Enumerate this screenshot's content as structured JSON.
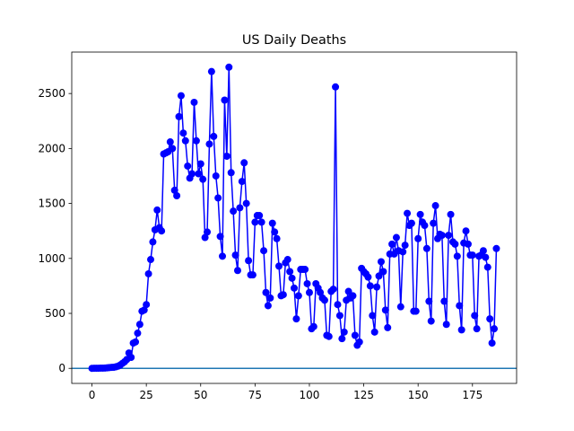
{
  "chart_data": {
    "type": "line",
    "title": "US Daily Deaths",
    "x": [
      0,
      1,
      2,
      3,
      4,
      5,
      6,
      7,
      8,
      9,
      10,
      11,
      12,
      13,
      14,
      15,
      16,
      17,
      18,
      19,
      20,
      21,
      22,
      23,
      24,
      25,
      26,
      27,
      28,
      29,
      30,
      31,
      32,
      33,
      34,
      35,
      36,
      37,
      38,
      39,
      40,
      41,
      42,
      43,
      44,
      45,
      46,
      47,
      48,
      49,
      50,
      51,
      52,
      53,
      54,
      55,
      56,
      57,
      58,
      59,
      60,
      61,
      62,
      63,
      64,
      65,
      66,
      67,
      68,
      69,
      70,
      71,
      72,
      73,
      74,
      75,
      76,
      77,
      78,
      79,
      80,
      81,
      82,
      83,
      84,
      85,
      86,
      87,
      88,
      89,
      90,
      91,
      92,
      93,
      94,
      95,
      96,
      97,
      98,
      99,
      100,
      101,
      102,
      103,
      104,
      105,
      106,
      107,
      108,
      109,
      110,
      111,
      112,
      113,
      114,
      115,
      116,
      117,
      118,
      119,
      120,
      121,
      122,
      123,
      124,
      125,
      126,
      127,
      128,
      129,
      130,
      131,
      132,
      133,
      134,
      135,
      136,
      137,
      138,
      139,
      140,
      141,
      142,
      143,
      144,
      145,
      146,
      147,
      148,
      149,
      150,
      151,
      152,
      153,
      154,
      155,
      156,
      157,
      158,
      159,
      160,
      161,
      162,
      163,
      164,
      165,
      166,
      167,
      168,
      169,
      170,
      171,
      172,
      173,
      174,
      175,
      176,
      177,
      178,
      179,
      180,
      181,
      182,
      183,
      184,
      185,
      186
    ],
    "series": [
      {
        "name": "US",
        "color": "#0000ff",
        "values": [
          0,
          1,
          1,
          1,
          2,
          2,
          3,
          5,
          7,
          9,
          10,
          14,
          20,
          30,
          45,
          60,
          80,
          140,
          100,
          230,
          240,
          320,
          400,
          520,
          530,
          580,
          860,
          990,
          1150,
          1260,
          1440,
          1280,
          1250,
          1950,
          1960,
          1970,
          2060,
          2000,
          1620,
          1570,
          2290,
          2480,
          2140,
          2070,
          1840,
          1730,
          1770,
          2420,
          2070,
          1770,
          1860,
          1720,
          1190,
          1240,
          2040,
          2700,
          2110,
          1750,
          1550,
          1200,
          1020,
          2440,
          1930,
          2740,
          1780,
          1430,
          1030,
          890,
          1460,
          1700,
          1870,
          1500,
          980,
          850,
          850,
          1330,
          1390,
          1390,
          1330,
          1070,
          690,
          570,
          640,
          1320,
          1240,
          1180,
          930,
          660,
          670,
          960,
          990,
          880,
          820,
          730,
          450,
          660,
          900,
          900,
          900,
          770,
          690,
          360,
          380,
          770,
          730,
          690,
          640,
          620,
          300,
          290,
          700,
          720,
          2560,
          580,
          480,
          270,
          330,
          620,
          700,
          640,
          660,
          300,
          210,
          240,
          910,
          880,
          860,
          830,
          750,
          480,
          330,
          740,
          840,
          970,
          880,
          530,
          370,
          1040,
          1130,
          1040,
          1190,
          1070,
          560,
          1060,
          1120,
          1410,
          1300,
          1320,
          520,
          520,
          1180,
          1400,
          1330,
          1300,
          1090,
          610,
          430,
          1320,
          1480,
          1180,
          1220,
          1210,
          610,
          400,
          1210,
          1400,
          1150,
          1130,
          1020,
          570,
          350,
          1140,
          1250,
          1130,
          1030,
          1030,
          480,
          360,
          1020,
          1030,
          1070,
          1010,
          920,
          450,
          230,
          360,
          1090
        ]
      }
    ],
    "hline": 0,
    "hline_color": "#1f77b4",
    "xlim": [
      -9.3,
      195.3
    ],
    "ylim": [
      -137,
      2877
    ],
    "xticks": [
      0,
      25,
      50,
      75,
      100,
      125,
      150,
      175
    ],
    "yticks": [
      0,
      500,
      1000,
      1500,
      2000,
      2500
    ]
  }
}
